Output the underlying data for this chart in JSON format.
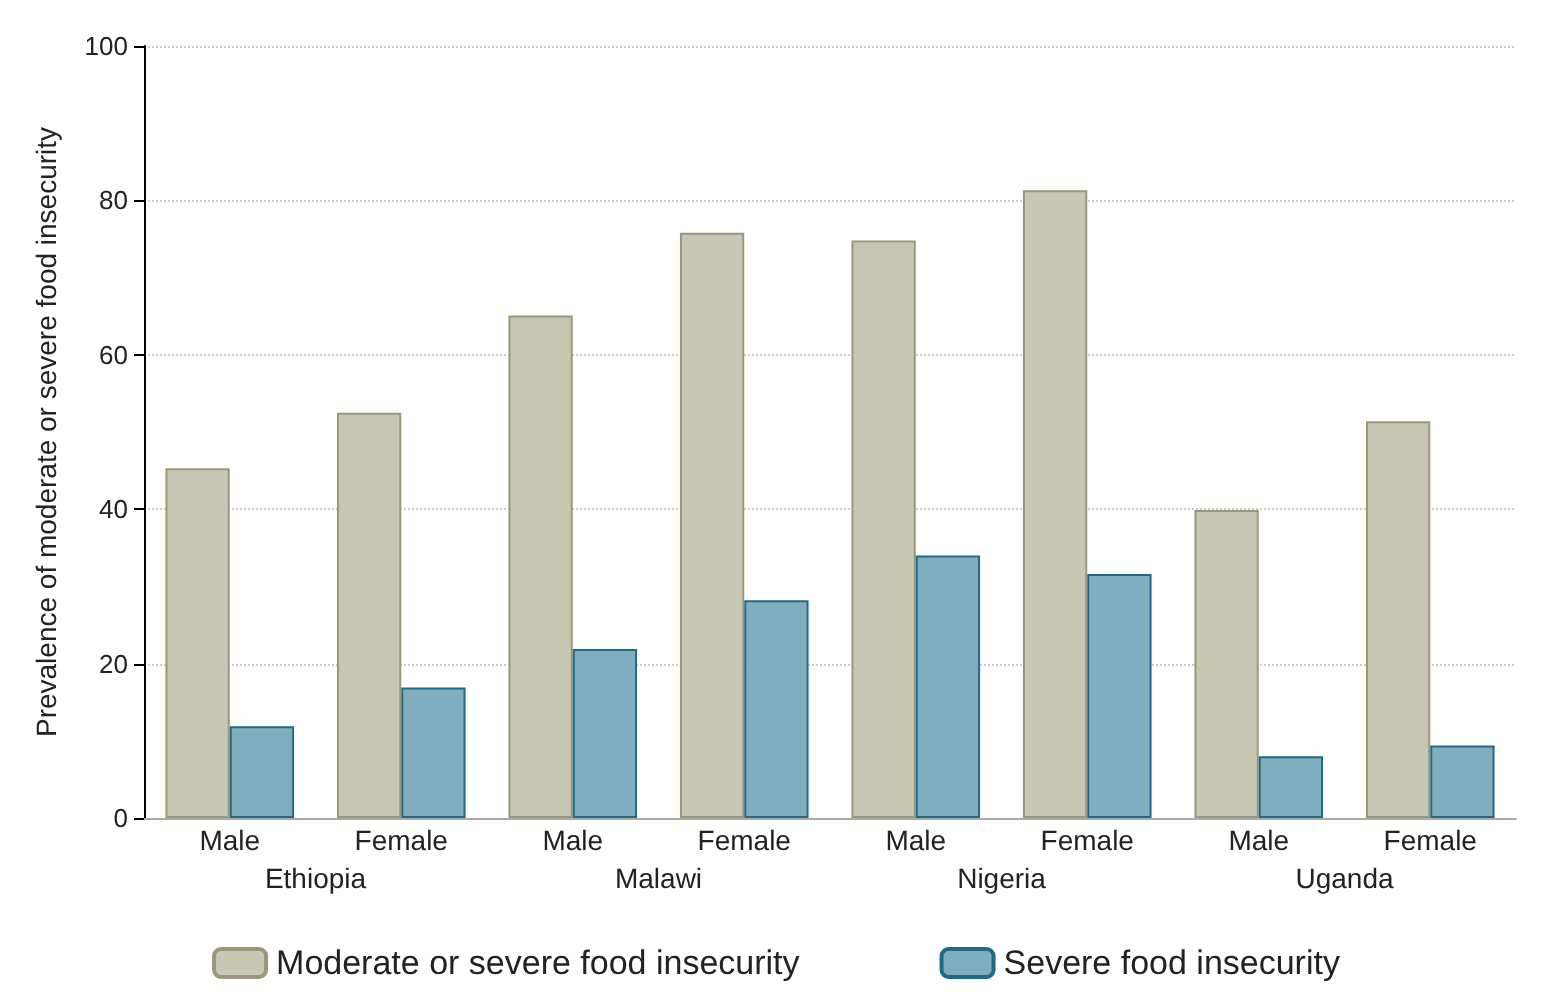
{
  "chart_data": {
    "type": "bar",
    "ylabel": "Prevalence of moderate or severe food insecurity",
    "categories": [
      "Male",
      "Female",
      "Male",
      "Female",
      "Male",
      "Female",
      "Male",
      "Female"
    ],
    "annotations": [
      "Ethiopia",
      "Malawi",
      "Nigeria",
      "Uganda"
    ],
    "series": [
      {
        "name": "Moderate or severe food insecurity",
        "color": "#c8c7b4",
        "values": [
          45.3,
          52.5,
          65.1,
          75.8,
          74.8,
          81.3,
          39.9,
          51.4
        ]
      },
      {
        "name": "Severe food insecurity",
        "color": "#80aebf",
        "values": [
          11.9,
          16.9,
          21.9,
          28.2,
          34.0,
          31.6,
          8.0,
          9.4
        ]
      }
    ],
    "ylim": [
      0,
      100
    ],
    "yticks": [
      0,
      20,
      40,
      60,
      80,
      100
    ],
    "grid": "y",
    "legend": "bottom"
  }
}
